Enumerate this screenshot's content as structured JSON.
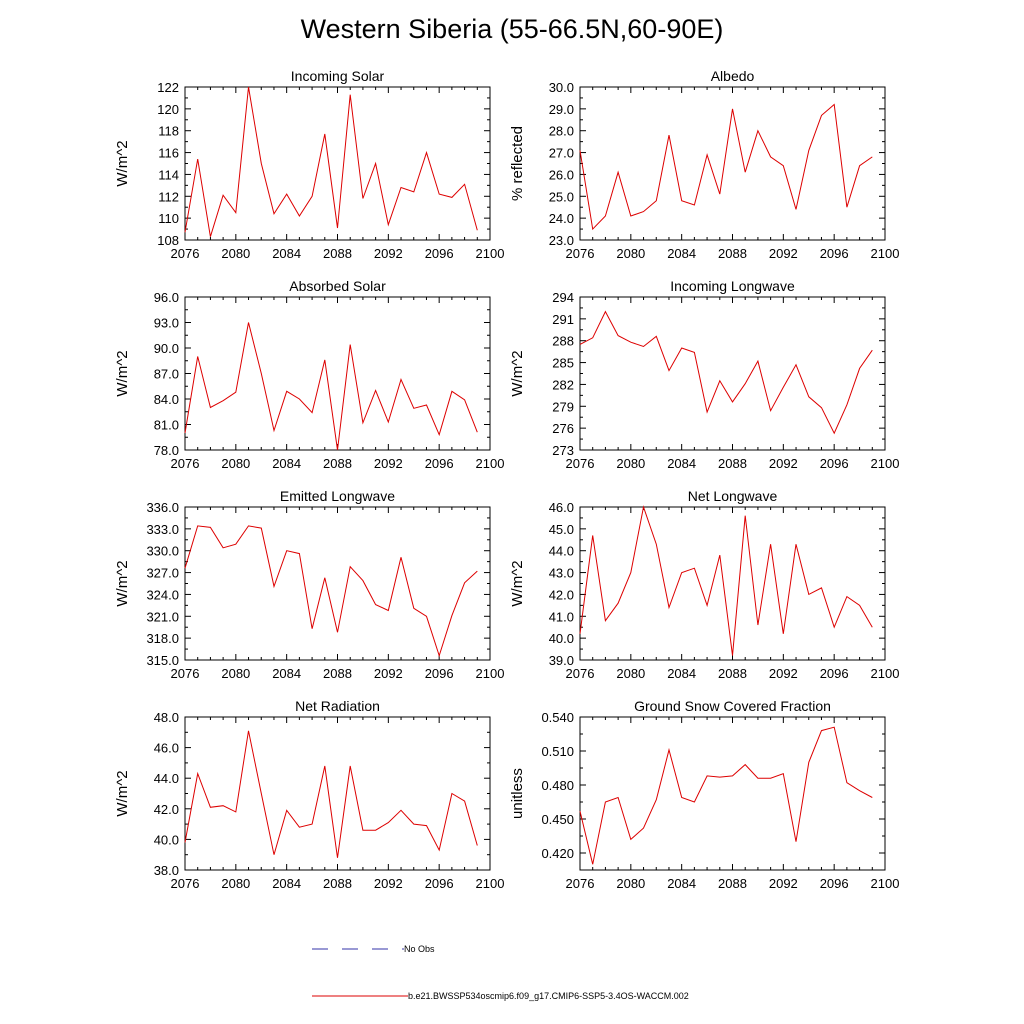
{
  "title": "Western Siberia (55-66.5N,60-90E)",
  "legend": {
    "obs_label": "No Obs",
    "model_label": "b.e21.BWSSP534oscmip6.f09_g17.CMIP6-SSP5-3.4OS-WACCM.002",
    "obs_color": "#3333aa",
    "model_color": "#dd0000"
  },
  "chart_data": [
    {
      "type": "line",
      "title": "Incoming Solar",
      "ylabel": "W/m^2",
      "xlim": [
        2076,
        2100
      ],
      "ylim": [
        108,
        122
      ],
      "xticks": [
        "2076",
        "2080",
        "2084",
        "2088",
        "2092",
        "2096",
        "2100"
      ],
      "yticks": [
        "108",
        "110",
        "112",
        "114",
        "116",
        "118",
        "120",
        "122"
      ],
      "x": [
        2076,
        2077,
        2078,
        2079,
        2080,
        2081,
        2082,
        2083,
        2084,
        2085,
        2086,
        2087,
        2088,
        2089,
        2090,
        2091,
        2092,
        2093,
        2094,
        2095,
        2096,
        2097,
        2098,
        2099
      ],
      "series": [
        {
          "values": [
            108.7,
            115.4,
            108.3,
            112.1,
            110.5,
            122.0,
            115.0,
            110.4,
            112.2,
            110.2,
            112.0,
            117.7,
            109.1,
            121.3,
            111.8,
            115.0,
            109.4,
            112.8,
            112.4,
            116.0,
            112.2,
            111.9,
            113.1,
            108.9
          ]
        }
      ]
    },
    {
      "type": "line",
      "title": "Albedo",
      "ylabel": "% reflected",
      "xlim": [
        2076,
        2100
      ],
      "ylim": [
        23,
        30
      ],
      "xticks": [
        "2076",
        "2080",
        "2084",
        "2088",
        "2092",
        "2096",
        "2100"
      ],
      "yticks": [
        "23.0",
        "24.0",
        "25.0",
        "26.0",
        "27.0",
        "28.0",
        "29.0",
        "30.0"
      ],
      "x": [
        2076,
        2077,
        2078,
        2079,
        2080,
        2081,
        2082,
        2083,
        2084,
        2085,
        2086,
        2087,
        2088,
        2089,
        2090,
        2091,
        2092,
        2093,
        2094,
        2095,
        2096,
        2097,
        2098,
        2099
      ],
      "series": [
        {
          "values": [
            27.1,
            23.5,
            24.1,
            26.1,
            24.1,
            24.3,
            24.8,
            27.8,
            24.8,
            24.6,
            26.9,
            25.1,
            29.0,
            26.1,
            28.0,
            26.8,
            26.4,
            24.4,
            27.1,
            28.7,
            29.2,
            24.5,
            26.4,
            26.8
          ]
        }
      ]
    },
    {
      "type": "line",
      "title": "Absorbed Solar",
      "ylabel": "W/m^2",
      "xlim": [
        2076,
        2100
      ],
      "ylim": [
        78,
        96
      ],
      "xticks": [
        "2076",
        "2080",
        "2084",
        "2088",
        "2092",
        "2096",
        "2100"
      ],
      "yticks": [
        "78.0",
        "81.0",
        "84.0",
        "87.0",
        "90.0",
        "93.0",
        "96.0"
      ],
      "x": [
        2076,
        2077,
        2078,
        2079,
        2080,
        2081,
        2082,
        2083,
        2084,
        2085,
        2086,
        2087,
        2088,
        2089,
        2090,
        2091,
        2092,
        2093,
        2094,
        2095,
        2096,
        2097,
        2098,
        2099
      ],
      "series": [
        {
          "values": [
            80.0,
            89.0,
            83.0,
            83.8,
            84.8,
            93.0,
            87.0,
            80.3,
            84.9,
            84.0,
            82.4,
            88.6,
            78.0,
            90.4,
            81.2,
            85.0,
            81.3,
            86.3,
            82.9,
            83.3,
            79.8,
            84.9,
            83.9,
            80.1
          ]
        }
      ]
    },
    {
      "type": "line",
      "title": "Incoming Longwave",
      "ylabel": "W/m^2",
      "xlim": [
        2076,
        2100
      ],
      "ylim": [
        273,
        294
      ],
      "xticks": [
        "2076",
        "2080",
        "2084",
        "2088",
        "2092",
        "2096",
        "2100"
      ],
      "yticks": [
        "273",
        "276",
        "279",
        "282",
        "285",
        "288",
        "291",
        "294"
      ],
      "x": [
        2076,
        2077,
        2078,
        2079,
        2080,
        2081,
        2082,
        2083,
        2084,
        2085,
        2086,
        2087,
        2088,
        2089,
        2090,
        2091,
        2092,
        2093,
        2094,
        2095,
        2096,
        2097,
        2098,
        2099
      ],
      "series": [
        {
          "values": [
            287.5,
            288.4,
            292.0,
            288.7,
            287.8,
            287.2,
            288.6,
            283.9,
            287.0,
            286.4,
            278.2,
            282.5,
            279.6,
            282.1,
            285.2,
            278.4,
            281.6,
            284.7,
            280.3,
            278.8,
            275.3,
            279.2,
            284.2,
            286.7
          ]
        }
      ]
    },
    {
      "type": "line",
      "title": "Emitted Longwave",
      "ylabel": "W/m^2",
      "xlim": [
        2076,
        2100
      ],
      "ylim": [
        315,
        336
      ],
      "xticks": [
        "2076",
        "2080",
        "2084",
        "2088",
        "2092",
        "2096",
        "2100"
      ],
      "yticks": [
        "315.0",
        "318.0",
        "321.0",
        "324.0",
        "327.0",
        "330.0",
        "333.0",
        "336.0"
      ],
      "x": [
        2076,
        2077,
        2078,
        2079,
        2080,
        2081,
        2082,
        2083,
        2084,
        2085,
        2086,
        2087,
        2088,
        2089,
        2090,
        2091,
        2092,
        2093,
        2094,
        2095,
        2096,
        2097,
        2098,
        2099
      ],
      "series": [
        {
          "values": [
            327.6,
            333.4,
            333.2,
            330.4,
            330.9,
            333.4,
            333.1,
            325.1,
            330.0,
            329.6,
            319.3,
            326.3,
            318.8,
            327.8,
            325.9,
            322.6,
            321.8,
            329.1,
            322.1,
            321.0,
            315.6,
            321.1,
            325.6,
            327.2
          ]
        }
      ]
    },
    {
      "type": "line",
      "title": "Net Longwave",
      "ylabel": "W/m^2",
      "xlim": [
        2076,
        2100
      ],
      "ylim": [
        39,
        46
      ],
      "xticks": [
        "2076",
        "2080",
        "2084",
        "2088",
        "2092",
        "2096",
        "2100"
      ],
      "yticks": [
        "39.0",
        "40.0",
        "41.0",
        "42.0",
        "43.0",
        "44.0",
        "45.0",
        "46.0"
      ],
      "x": [
        2076,
        2077,
        2078,
        2079,
        2080,
        2081,
        2082,
        2083,
        2084,
        2085,
        2086,
        2087,
        2088,
        2089,
        2090,
        2091,
        2092,
        2093,
        2094,
        2095,
        2096,
        2097,
        2098,
        2099
      ],
      "series": [
        {
          "values": [
            40.2,
            44.7,
            40.8,
            41.6,
            43.0,
            46.0,
            44.3,
            41.4,
            43.0,
            43.2,
            41.5,
            43.8,
            39.2,
            45.6,
            40.6,
            44.3,
            40.2,
            44.3,
            42.0,
            42.3,
            40.5,
            41.9,
            41.5,
            40.5
          ]
        }
      ]
    },
    {
      "type": "line",
      "title": "Net Radiation",
      "ylabel": "W/m^2",
      "xlim": [
        2076,
        2100
      ],
      "ylim": [
        38,
        48
      ],
      "xticks": [
        "2076",
        "2080",
        "2084",
        "2088",
        "2092",
        "2096",
        "2100"
      ],
      "yticks": [
        "38.0",
        "40.0",
        "42.0",
        "44.0",
        "46.0",
        "48.0"
      ],
      "x": [
        2076,
        2077,
        2078,
        2079,
        2080,
        2081,
        2082,
        2083,
        2084,
        2085,
        2086,
        2087,
        2088,
        2089,
        2090,
        2091,
        2092,
        2093,
        2094,
        2095,
        2096,
        2097,
        2098,
        2099
      ],
      "series": [
        {
          "values": [
            39.8,
            44.3,
            42.1,
            42.2,
            41.8,
            47.1,
            43.0,
            39.0,
            41.9,
            40.8,
            41.0,
            44.8,
            38.8,
            44.8,
            40.6,
            40.6,
            41.1,
            41.9,
            41.0,
            40.9,
            39.3,
            43.0,
            42.5,
            39.6
          ]
        }
      ]
    },
    {
      "type": "line",
      "title": "Ground Snow Covered Fraction",
      "ylabel": "unitless",
      "xlim": [
        2076,
        2100
      ],
      "ylim": [
        0.405,
        0.54
      ],
      "xticks": [
        "2076",
        "2080",
        "2084",
        "2088",
        "2092",
        "2096",
        "2100"
      ],
      "yticks": [
        "0.420",
        "0.450",
        "0.480",
        "0.510",
        "0.540"
      ],
      "ytick_values": [
        0.42,
        0.45,
        0.48,
        0.51,
        0.54
      ],
      "x": [
        2076,
        2077,
        2078,
        2079,
        2080,
        2081,
        2082,
        2083,
        2084,
        2085,
        2086,
        2087,
        2088,
        2089,
        2090,
        2091,
        2092,
        2093,
        2094,
        2095,
        2096,
        2097,
        2098,
        2099
      ],
      "series": [
        {
          "values": [
            0.457,
            0.41,
            0.465,
            0.469,
            0.432,
            0.442,
            0.467,
            0.511,
            0.469,
            0.465,
            0.488,
            0.487,
            0.488,
            0.498,
            0.486,
            0.486,
            0.49,
            0.43,
            0.5,
            0.528,
            0.531,
            0.482,
            0.475,
            0.469
          ]
        }
      ]
    }
  ]
}
